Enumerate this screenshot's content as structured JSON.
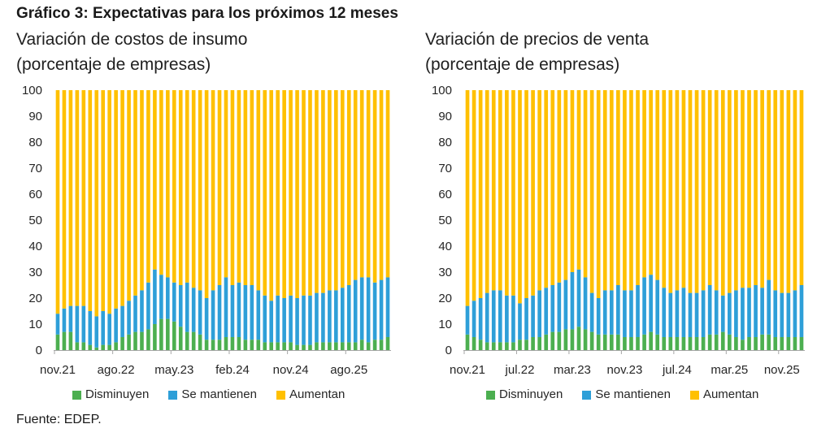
{
  "figure": {
    "title": "Gráfico 3: Expectativas para los próximos 12 meses",
    "source": "Fuente: EDEP."
  },
  "chart_data": [
    {
      "type": "bar",
      "stacked": true,
      "title": "Variación de costos de insumo",
      "subtitle": "(porcentaje de empresas)",
      "ylim": [
        0,
        100
      ],
      "yticks": [
        0,
        10,
        20,
        30,
        40,
        50,
        60,
        70,
        80,
        90,
        100
      ],
      "grid": false,
      "legend": "bottom",
      "categories": [
        "nov.21",
        "",
        "",
        "",
        "",
        "",
        "",
        "",
        "",
        "ago.22",
        "",
        "",
        "",
        "",
        "",
        "",
        "",
        "",
        "may.23",
        "",
        "",
        "",
        "",
        "",
        "",
        "",
        "",
        "feb.24",
        "",
        "",
        "",
        "",
        "",
        "",
        "",
        "",
        "nov.24",
        "",
        "",
        "",
        "",
        "",
        "",
        "",
        "",
        "ago.25",
        "",
        "",
        "",
        "",
        "",
        ""
      ],
      "series": [
        {
          "name": "Disminuyen",
          "color": "#4caf50",
          "values": [
            6,
            7,
            7,
            3,
            3,
            2,
            1,
            2,
            2,
            3,
            5,
            6,
            7,
            7,
            8,
            10,
            12,
            12,
            11,
            9,
            7,
            7,
            6,
            4,
            4,
            4,
            5,
            5,
            5,
            4,
            4,
            4,
            3,
            3,
            3,
            3,
            3,
            2,
            2,
            2,
            3,
            3,
            3,
            3,
            3,
            3,
            3,
            4,
            3,
            4,
            4,
            5
          ]
        },
        {
          "name": "Se mantienen",
          "color": "#2e9fd8",
          "values": [
            8,
            9,
            10,
            14,
            14,
            13,
            12,
            13,
            12,
            13,
            12,
            13,
            14,
            16,
            18,
            21,
            17,
            16,
            15,
            16,
            19,
            17,
            17,
            16,
            19,
            21,
            23,
            20,
            21,
            21,
            21,
            19,
            18,
            16,
            18,
            17,
            18,
            18,
            19,
            19,
            19,
            19,
            20,
            20,
            21,
            22,
            24,
            24,
            25,
            22,
            23,
            23
          ]
        },
        {
          "name": "Aumentan",
          "color": "#ffc000",
          "values": [
            86,
            84,
            83,
            83,
            83,
            85,
            87,
            85,
            86,
            84,
            83,
            81,
            79,
            77,
            74,
            69,
            71,
            72,
            74,
            75,
            74,
            76,
            77,
            80,
            77,
            75,
            72,
            75,
            74,
            75,
            75,
            77,
            79,
            81,
            79,
            80,
            79,
            80,
            79,
            79,
            78,
            78,
            77,
            77,
            76,
            75,
            73,
            72,
            72,
            74,
            73,
            72
          ]
        }
      ]
    },
    {
      "type": "bar",
      "stacked": true,
      "title": "Variación de precios de venta",
      "subtitle": "(porcentaje de empresas)",
      "ylim": [
        0,
        100
      ],
      "yticks": [
        0,
        10,
        20,
        30,
        40,
        50,
        60,
        70,
        80,
        90,
        100
      ],
      "grid": false,
      "legend": "bottom",
      "categories": [
        "nov.21",
        "",
        "",
        "",
        "",
        "",
        "",
        "",
        "jul.22",
        "",
        "",
        "",
        "",
        "",
        "",
        "",
        "mar.23",
        "",
        "",
        "",
        "",
        "",
        "",
        "",
        "nov.23",
        "",
        "",
        "",
        "",
        "",
        "",
        "",
        "jul.24",
        "",
        "",
        "",
        "",
        "",
        "",
        "",
        "mar.25",
        "",
        "",
        "",
        "",
        "",
        "",
        "",
        "nov.25",
        "",
        "",
        ""
      ],
      "series": [
        {
          "name": "Disminuyen",
          "color": "#4caf50",
          "values": [
            6,
            5,
            4,
            3,
            3,
            3,
            3,
            3,
            4,
            4,
            5,
            5,
            6,
            7,
            7,
            8,
            8,
            9,
            8,
            7,
            6,
            6,
            6,
            6,
            5,
            5,
            5,
            6,
            7,
            6,
            5,
            5,
            5,
            5,
            5,
            5,
            5,
            6,
            6,
            7,
            6,
            5,
            4,
            5,
            5,
            6,
            6,
            5,
            5,
            5,
            5,
            5
          ]
        },
        {
          "name": "Se mantienen",
          "color": "#2e9fd8",
          "values": [
            11,
            14,
            16,
            19,
            20,
            20,
            18,
            18,
            14,
            16,
            16,
            18,
            18,
            18,
            19,
            19,
            22,
            22,
            20,
            15,
            14,
            17,
            17,
            19,
            18,
            18,
            20,
            22,
            22,
            21,
            19,
            17,
            18,
            19,
            17,
            17,
            18,
            19,
            17,
            14,
            16,
            18,
            20,
            19,
            20,
            18,
            21,
            18,
            17,
            17,
            18,
            20
          ]
        },
        {
          "name": "Aumentan",
          "color": "#ffc000",
          "values": [
            83,
            81,
            80,
            78,
            77,
            77,
            79,
            79,
            82,
            80,
            79,
            77,
            76,
            75,
            74,
            73,
            70,
            69,
            72,
            78,
            80,
            77,
            77,
            75,
            77,
            77,
            75,
            72,
            71,
            73,
            76,
            78,
            77,
            76,
            78,
            78,
            77,
            75,
            77,
            79,
            78,
            77,
            76,
            76,
            75,
            76,
            73,
            77,
            78,
            78,
            77,
            75
          ]
        }
      ]
    }
  ]
}
